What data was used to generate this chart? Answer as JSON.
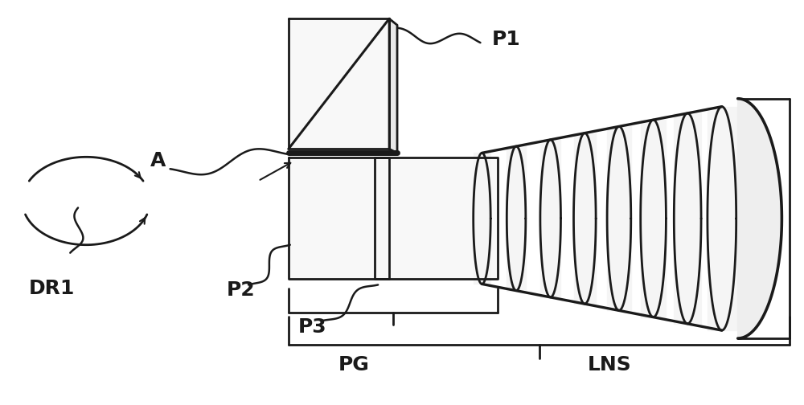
{
  "background_color": "#ffffff",
  "line_color": "#1a1a1a",
  "lw": 2.0,
  "figsize": [
    10.0,
    5.04
  ],
  "dpi": 100,
  "p1_label": "P1",
  "p2_label": "P2",
  "p3_label": "P3",
  "pg_label": "PG",
  "lns_label": "LNS",
  "a_label": "A",
  "dr1_label": "DR1",
  "label_fontsize": 16
}
